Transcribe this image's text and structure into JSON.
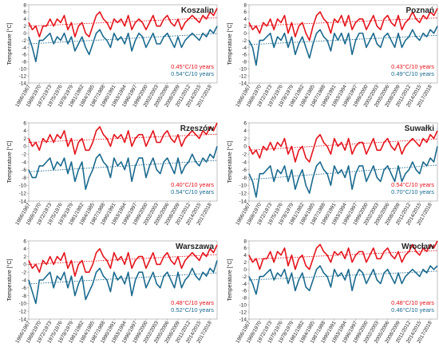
{
  "chart_data": [
    {
      "type": "line",
      "title": "Koszalin",
      "y_label": "Temperature [°C]",
      "categories": [
        "1966/1967",
        null,
        null,
        "1969/1970",
        null,
        null,
        "1972/1973",
        null,
        null,
        "1975/1976",
        null,
        null,
        "1978/1979",
        null,
        null,
        "1981/1982",
        null,
        null,
        "1984/1985",
        null,
        null,
        "1987/1988",
        null,
        null,
        "1990/1991",
        null,
        null,
        "1993/1994",
        null,
        null,
        "1996/1997",
        null,
        null,
        "1999/2000",
        null,
        null,
        "2002/2003",
        null,
        null,
        "2005/2006",
        null,
        null,
        "2008/2009",
        null,
        null,
        "2011/2012",
        null,
        null,
        "2014/2015",
        null,
        null,
        "2017/2018",
        null,
        null
      ],
      "ylim": [
        -14,
        8
      ],
      "yticks": [
        -14,
        -12,
        -10,
        -8,
        -6,
        -4,
        -2,
        0,
        2,
        4,
        6,
        8
      ],
      "series": [
        {
          "color": "#e3141c",
          "trend": [
            2.0,
            4.4
          ],
          "trend_label": "0.45°C/10 years",
          "values": [
            3,
            1,
            2,
            -1,
            2,
            2,
            4,
            2,
            4,
            3,
            5,
            1,
            3,
            -1,
            2,
            3,
            0,
            -1,
            2,
            5,
            6,
            4,
            3,
            1,
            4,
            3,
            4,
            2,
            5,
            1,
            3,
            4,
            3,
            1,
            3,
            5,
            2,
            2,
            4,
            5,
            3,
            2,
            4,
            1,
            3,
            4,
            5,
            4,
            3,
            5,
            4,
            6,
            5,
            7
          ]
        },
        {
          "color": "#1b6a8e",
          "trend": [
            -3.0,
            -0.1
          ],
          "trend_label": "0.54°C/10 years",
          "values": [
            -1,
            -4,
            -8,
            -2,
            -2,
            -1,
            0,
            -3,
            -1,
            -2,
            0,
            -3,
            -1,
            -5,
            -3,
            -1,
            -4,
            -6,
            -3,
            0,
            1,
            -1,
            -2,
            -4,
            0,
            -2,
            -1,
            -3,
            0,
            -5,
            -2,
            0,
            -1,
            -4,
            -2,
            0,
            -3,
            -3,
            -1,
            0,
            -2,
            -4,
            -1,
            -4,
            -2,
            -1,
            0,
            -1,
            -2,
            0,
            -1,
            1,
            0,
            2
          ]
        }
      ]
    },
    {
      "type": "line",
      "title": "Poznań",
      "y_label": "Temperature [°C]",
      "categories": [
        "1966/1967",
        null,
        null,
        "1969/1970",
        null,
        null,
        "1972/1973",
        null,
        null,
        "1975/1976",
        null,
        null,
        "1978/1979",
        null,
        null,
        "1981/1982",
        null,
        null,
        "1984/1985",
        null,
        null,
        "1987/1988",
        null,
        null,
        "1990/1991",
        null,
        null,
        "1993/1994",
        null,
        null,
        "1996/1997",
        null,
        null,
        "1999/2000",
        null,
        null,
        "2002/2003",
        null,
        null,
        "2005/2006",
        null,
        null,
        "2008/2009",
        null,
        null,
        "2011/2012",
        null,
        null,
        "2014/2015",
        null,
        null,
        "2017/2018",
        null,
        null
      ],
      "ylim": [
        -14,
        8
      ],
      "yticks": [
        -14,
        -12,
        -10,
        -8,
        -6,
        -4,
        -2,
        0,
        2,
        4,
        6,
        8
      ],
      "series": [
        {
          "color": "#e3141c",
          "trend": [
            2.0,
            4.3
          ],
          "trend_label": "0.43°C/10 years",
          "values": [
            3,
            1,
            2,
            0,
            3,
            2,
            4,
            1,
            4,
            3,
            5,
            0,
            3,
            -1,
            2,
            3,
            0,
            -2,
            2,
            5,
            6,
            4,
            3,
            0,
            4,
            3,
            5,
            2,
            5,
            1,
            3,
            4,
            4,
            1,
            3,
            5,
            2,
            1,
            4,
            5,
            3,
            2,
            5,
            1,
            3,
            4,
            6,
            4,
            3,
            5,
            4,
            6,
            5,
            7
          ]
        },
        {
          "color": "#1b6a8e",
          "trend": [
            -3.2,
            -0.6
          ],
          "trend_label": "0.49°C/10 years",
          "values": [
            -2,
            -4,
            -9,
            -2,
            -2,
            -1,
            0,
            -4,
            -1,
            -2,
            0,
            -4,
            -1,
            -6,
            -3,
            -1,
            -4,
            -7,
            -3,
            0,
            1,
            -1,
            -2,
            -5,
            0,
            -2,
            0,
            -3,
            0,
            -6,
            -2,
            0,
            0,
            -4,
            -2,
            0,
            -3,
            -4,
            -1,
            0,
            -2,
            -4,
            0,
            -4,
            -2,
            -1,
            1,
            -1,
            -2,
            0,
            -1,
            1,
            0,
            2
          ]
        }
      ]
    },
    {
      "type": "line",
      "title": "Rzeszów",
      "y_label": "Temperature [°C]",
      "categories": [
        "1966/1967",
        null,
        null,
        "1969/1970",
        null,
        null,
        "1972/1973",
        null,
        null,
        "1975/1976",
        null,
        null,
        "1978/1979",
        null,
        null,
        "1981/1982",
        null,
        null,
        "1984/1985",
        null,
        null,
        "1987/1988",
        null,
        null,
        "1990/1991",
        null,
        null,
        "1993/1994",
        null,
        null,
        "1996/1997",
        null,
        null,
        "1999/2000",
        null,
        null,
        "2002/2003",
        null,
        null,
        "2005/2006",
        null,
        null,
        "2008/2009",
        null,
        null,
        "2011/2012",
        null,
        null,
        "2014/2015",
        null,
        null,
        "2017/2018",
        null,
        null
      ],
      "ylim": [
        -14,
        6
      ],
      "yticks": [
        -14,
        -12,
        -10,
        -8,
        -6,
        -4,
        -2,
        0,
        2,
        4,
        6
      ],
      "series": [
        {
          "color": "#e3141c",
          "trend": [
            1.0,
            3.1
          ],
          "trend_label": "0.40°C/10 years",
          "values": [
            2,
            0,
            1,
            -1,
            2,
            1,
            3,
            1,
            3,
            2,
            4,
            0,
            2,
            -2,
            1,
            2,
            -1,
            -1,
            1,
            4,
            5,
            3,
            2,
            0,
            3,
            2,
            3,
            1,
            4,
            0,
            2,
            3,
            3,
            0,
            2,
            4,
            1,
            1,
            3,
            4,
            2,
            1,
            3,
            0,
            2,
            3,
            4,
            3,
            2,
            4,
            3,
            5,
            4,
            6
          ]
        },
        {
          "color": "#1b6a8e",
          "trend": [
            -6.5,
            -3.6
          ],
          "trend_label": "0.54°C/10 years",
          "values": [
            -6,
            -8,
            -8,
            -5,
            -5,
            -4,
            -3,
            -6,
            -4,
            -5,
            -3,
            -7,
            -4,
            -9,
            -6,
            -4,
            -11,
            -8,
            -6,
            -3,
            -2,
            -4,
            -5,
            -8,
            -3,
            -5,
            -4,
            -6,
            -3,
            -9,
            -5,
            -3,
            -3,
            -8,
            -5,
            -3,
            -6,
            -7,
            -4,
            -3,
            -5,
            -7,
            -3,
            -7,
            -5,
            -4,
            -2,
            -4,
            -5,
            -3,
            -4,
            -2,
            -3,
            0
          ]
        }
      ]
    },
    {
      "type": "line",
      "title": "Suwałki",
      "y_label": "Temperature [°C]",
      "categories": [
        "1966/1967",
        null,
        null,
        "1969/1970",
        null,
        null,
        "1972/1973",
        null,
        null,
        "1975/1976",
        null,
        null,
        "1978/1979",
        null,
        null,
        "1981/1982",
        null,
        null,
        "1984/1985",
        null,
        null,
        "1987/1988",
        null,
        null,
        "1990/1991",
        null,
        null,
        "1993/1994",
        null,
        null,
        "1996/1997",
        null,
        null,
        "1999/2000",
        null,
        null,
        "2002/2003",
        null,
        null,
        "2005/2006",
        null,
        null,
        "2008/2009",
        null,
        null,
        "2011/2012",
        null,
        null,
        "2014/2015",
        null,
        null,
        "2017/2018",
        null,
        null
      ],
      "ylim": [
        -14,
        6
      ],
      "yticks": [
        -14,
        -12,
        -10,
        -8,
        -6,
        -4,
        -2,
        0,
        2,
        4,
        6
      ],
      "series": [
        {
          "color": "#e3141c",
          "trend": [
            -1.0,
            1.9
          ],
          "trend_label": "0.54°C/10 years",
          "values": [
            0,
            -2,
            -1,
            -3,
            0,
            -1,
            1,
            -1,
            1,
            0,
            2,
            -2,
            0,
            -4,
            -1,
            0,
            -3,
            -4,
            -1,
            2,
            3,
            1,
            0,
            -2,
            2,
            0,
            1,
            -1,
            2,
            -2,
            0,
            1,
            1,
            -2,
            0,
            2,
            -1,
            -1,
            1,
            2,
            0,
            -1,
            1,
            -2,
            0,
            1,
            2,
            1,
            0,
            2,
            1,
            3,
            2,
            4
          ]
        },
        {
          "color": "#1b6a8e",
          "trend": [
            -8.5,
            -4.8
          ],
          "trend_label": "0.70°C/10 years",
          "values": [
            -7,
            -9,
            -13,
            -7,
            -7,
            -6,
            -5,
            -9,
            -6,
            -7,
            -5,
            -9,
            -6,
            -11,
            -8,
            -6,
            -10,
            -12,
            -8,
            -5,
            -4,
            -6,
            -7,
            -10,
            -5,
            -7,
            -6,
            -8,
            -5,
            -11,
            -7,
            -5,
            -5,
            -9,
            -7,
            -5,
            -8,
            -9,
            -6,
            -5,
            -7,
            -9,
            -5,
            -9,
            -7,
            -6,
            -4,
            -6,
            -7,
            -4,
            -5,
            -3,
            -4,
            0
          ]
        }
      ]
    },
    {
      "type": "line",
      "title": "Warszawa",
      "y_label": "Temperature [°C]",
      "categories": [
        "1966/1967",
        null,
        null,
        "1969/1970",
        null,
        null,
        "1972/1973",
        null,
        null,
        "1975/1976",
        null,
        null,
        "1978/1979",
        null,
        null,
        "1981/1982",
        null,
        null,
        "1984/1985",
        null,
        null,
        "1987/1988",
        null,
        null,
        "1990/1991",
        null,
        null,
        "1993/1994",
        null,
        null,
        "1996/1997",
        null,
        null,
        "1999/2000",
        null,
        null,
        "2002/2003",
        null,
        null,
        "2005/2006",
        null,
        null,
        "2008/2009",
        null,
        null,
        "2011/2012",
        null,
        null,
        "2014/2015",
        null,
        null,
        "2017/2018",
        null,
        null
      ],
      "ylim": [
        -14,
        6
      ],
      "yticks": [
        -14,
        -12,
        -10,
        -8,
        -6,
        -4,
        -2,
        0,
        2,
        4,
        6
      ],
      "series": [
        {
          "color": "#e3141c",
          "trend": [
            0.0,
            2.5
          ],
          "trend_label": "0.48°C/10 years",
          "values": [
            1,
            -1,
            0,
            -2,
            1,
            0,
            2,
            0,
            2,
            1,
            3,
            -1,
            1,
            -3,
            0,
            1,
            -2,
            -2,
            0,
            3,
            4,
            2,
            1,
            -1,
            3,
            1,
            2,
            0,
            3,
            -1,
            1,
            2,
            2,
            -1,
            1,
            3,
            0,
            0,
            2,
            3,
            1,
            0,
            2,
            -1,
            1,
            2,
            3,
            2,
            1,
            3,
            2,
            4,
            3,
            5
          ]
        },
        {
          "color": "#1b6a8e",
          "trend": [
            -5.0,
            -2.2
          ],
          "trend_label": "0.52°C/10 years",
          "values": [
            -4,
            -7,
            -10,
            -4,
            -4,
            -3,
            -2,
            -6,
            -3,
            -4,
            -2,
            -6,
            -3,
            -8,
            -5,
            -3,
            -9,
            -7,
            -5,
            -2,
            -1,
            -3,
            -4,
            -7,
            -2,
            -4,
            -3,
            -5,
            -2,
            -8,
            -4,
            -2,
            -2,
            -6,
            -4,
            -2,
            -5,
            -6,
            -3,
            -2,
            -4,
            -6,
            -2,
            -6,
            -4,
            -3,
            -1,
            -3,
            -4,
            -2,
            -3,
            -1,
            -2,
            1
          ]
        }
      ]
    },
    {
      "type": "line",
      "title": "Wrocław",
      "y_label": "Temperature [°C]",
      "categories": [
        "1966/1967",
        null,
        null,
        "1969/1970",
        null,
        null,
        "1972/1973",
        null,
        null,
        "1975/1976",
        null,
        null,
        "1978/1979",
        null,
        null,
        "1981/1982",
        null,
        null,
        "1984/1985",
        null,
        null,
        "1987/1988",
        null,
        null,
        "1990/1991",
        null,
        null,
        "1993/1994",
        null,
        null,
        "1996/1997",
        null,
        null,
        "1999/2000",
        null,
        null,
        "2002/2003",
        null,
        null,
        "2005/2006",
        null,
        null,
        "2008/2009",
        null,
        null,
        "2011/2012",
        null,
        null,
        "2014/2015",
        null,
        null,
        "2017/2018",
        null,
        null
      ],
      "ylim": [
        -14,
        8
      ],
      "yticks": [
        -14,
        -12,
        -10,
        -8,
        -6,
        -4,
        -2,
        0,
        2,
        4,
        6,
        8
      ],
      "series": [
        {
          "color": "#e3141c",
          "trend": [
            2.8,
            5.3
          ],
          "trend_label": "0.48°C/10 years",
          "values": [
            4,
            2,
            3,
            0,
            3,
            3,
            5,
            2,
            5,
            4,
            6,
            1,
            4,
            0,
            3,
            4,
            1,
            0,
            3,
            6,
            7,
            5,
            4,
            2,
            5,
            4,
            5,
            3,
            6,
            2,
            4,
            5,
            5,
            2,
            4,
            6,
            3,
            3,
            5,
            6,
            4,
            3,
            5,
            2,
            4,
            5,
            7,
            5,
            4,
            6,
            5,
            7,
            6,
            8
          ]
        },
        {
          "color": "#1b6a8e",
          "trend": [
            -3.0,
            -0.5
          ],
          "trend_label": "0.46°C/10 years",
          "values": [
            -2,
            -4,
            -7,
            -2,
            -2,
            -1,
            0,
            -3,
            -1,
            -2,
            0,
            -4,
            -1,
            -6,
            -3,
            -1,
            -5,
            -6,
            -3,
            0,
            1,
            -1,
            -2,
            -5,
            0,
            -2,
            -1,
            -3,
            0,
            -6,
            -2,
            0,
            -1,
            -4,
            -2,
            0,
            -3,
            -4,
            -1,
            0,
            -2,
            -4,
            -1,
            -4,
            -2,
            -1,
            0,
            -1,
            -2,
            0,
            -1,
            1,
            0,
            1
          ]
        }
      ]
    }
  ]
}
